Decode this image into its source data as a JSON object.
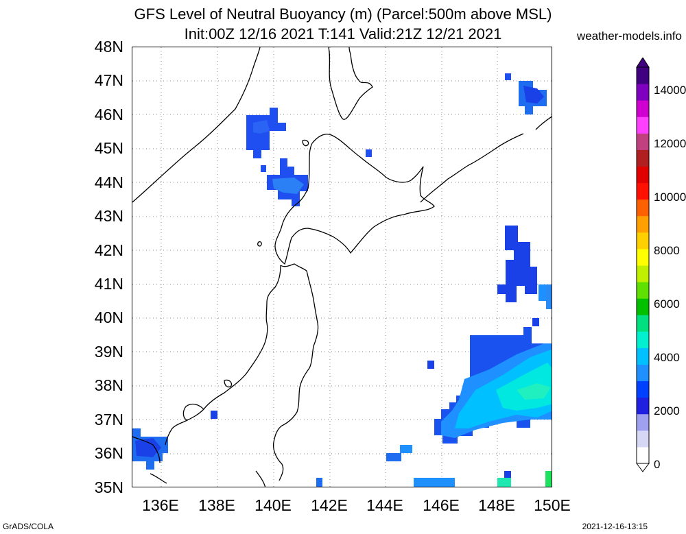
{
  "title": {
    "line1": "GFS Level of Neutral Buoyancy (m) (Parcel:500m above MSL)",
    "line2": "Init:00Z 12/16 2021 T:141 Valid:21Z 12/21 2021"
  },
  "credit": "weather-models.info",
  "lat_labels": [
    "48N",
    "47N",
    "46N",
    "45N",
    "44N",
    "43N",
    "42N",
    "41N",
    "40N",
    "39N",
    "38N",
    "37N",
    "36N",
    "35N"
  ],
  "lon_labels": [
    "136E",
    "138E",
    "140E",
    "142E",
    "144E",
    "146E",
    "148E",
    "150E"
  ],
  "colorbar": {
    "labels": [
      "0",
      "2000",
      "4000",
      "6000",
      "8000",
      "10000",
      "12000",
      "14000"
    ],
    "colors": [
      "#ffffff",
      "#d6d6f5",
      "#a0a0f0",
      "#2020e0",
      "#0040ff",
      "#1e90ff",
      "#00c0ff",
      "#00f0d0",
      "#00e080",
      "#00c000",
      "#60e000",
      "#c0f000",
      "#ffff00",
      "#ffd000",
      "#ffa000",
      "#ff6000",
      "#ff1000",
      "#e00000",
      "#b02020",
      "#c04080",
      "#ff40ff",
      "#d000d0",
      "#8000c0",
      "#400080"
    ]
  },
  "footer": {
    "left": "GrADS/COLA",
    "right": "2021-12-16-13:15"
  },
  "map_layers": {
    "data_blobs": [
      {
        "region": "north-maritime-45N-140E",
        "color": "#1f4ff0"
      },
      {
        "region": "hokkaido-west-44N",
        "color": "#2060f0"
      },
      {
        "region": "pacific-42N-149E",
        "color": "#1a40e8"
      },
      {
        "region": "pacific-38N-148E",
        "color": "#00c8f0"
      },
      {
        "region": "japan-sea-36N-135E",
        "color": "#1e6cf0"
      },
      {
        "region": "kuril-47N-149E",
        "color": "#1e6cf0"
      }
    ]
  }
}
